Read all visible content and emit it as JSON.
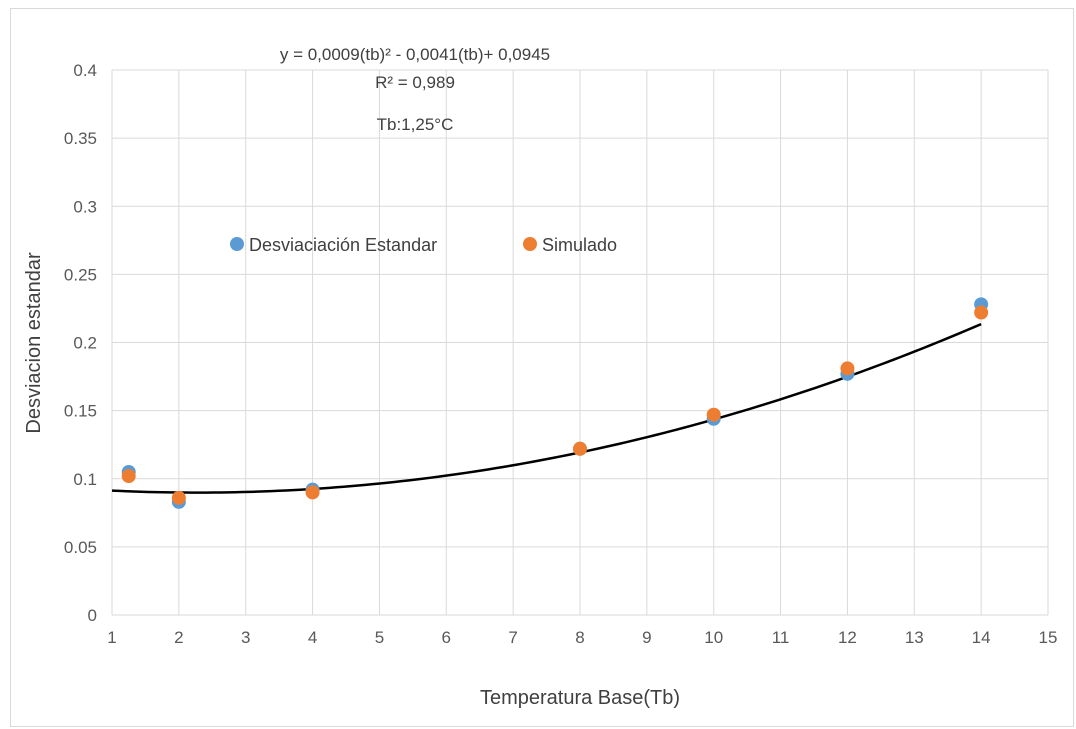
{
  "chart_data": {
    "type": "scatter",
    "title": "",
    "xlabel": "Temperatura Base(Tb)",
    "ylabel": "Desviacion estandar",
    "xlim": [
      1,
      15
    ],
    "ylim": [
      0,
      0.4
    ],
    "x_ticks": [
      1,
      2,
      3,
      4,
      5,
      6,
      7,
      8,
      9,
      10,
      11,
      12,
      13,
      14,
      15
    ],
    "y_ticks": [
      0,
      0.05,
      0.1,
      0.15,
      0.2,
      0.25,
      0.3,
      0.35,
      0.4
    ],
    "y_tick_labels": [
      "0",
      "0.05",
      "0.1",
      "0.15",
      "0.2",
      "0.25",
      "0.3",
      "0.35",
      "0.4"
    ],
    "grid": true,
    "legend_position": "top-center",
    "series": [
      {
        "name": "Desviaciación Estandar",
        "color": "#5b9bd5",
        "x": [
          1.25,
          2,
          4,
          8,
          10,
          12,
          14
        ],
        "y": [
          0.105,
          0.083,
          0.092,
          0.122,
          0.144,
          0.177,
          0.228
        ]
      },
      {
        "name": "Simulado",
        "color": "#ed7d31",
        "x": [
          1.25,
          2,
          4,
          8,
          10,
          12,
          14
        ],
        "y": [
          0.102,
          0.086,
          0.09,
          0.122,
          0.147,
          0.181,
          0.222
        ]
      }
    ],
    "trendline": {
      "type": "polynomial-2",
      "color": "#000000",
      "coefficients": [
        0.0009,
        -0.0041,
        0.0945
      ],
      "x_range": [
        1,
        14
      ]
    },
    "annotations": {
      "equation": "y = 0,0009(tb)² - 0,0041(tb)+ 0,0945",
      "r_squared": "R² = 0,989",
      "base_temp": "Tb:1,25°C"
    }
  }
}
